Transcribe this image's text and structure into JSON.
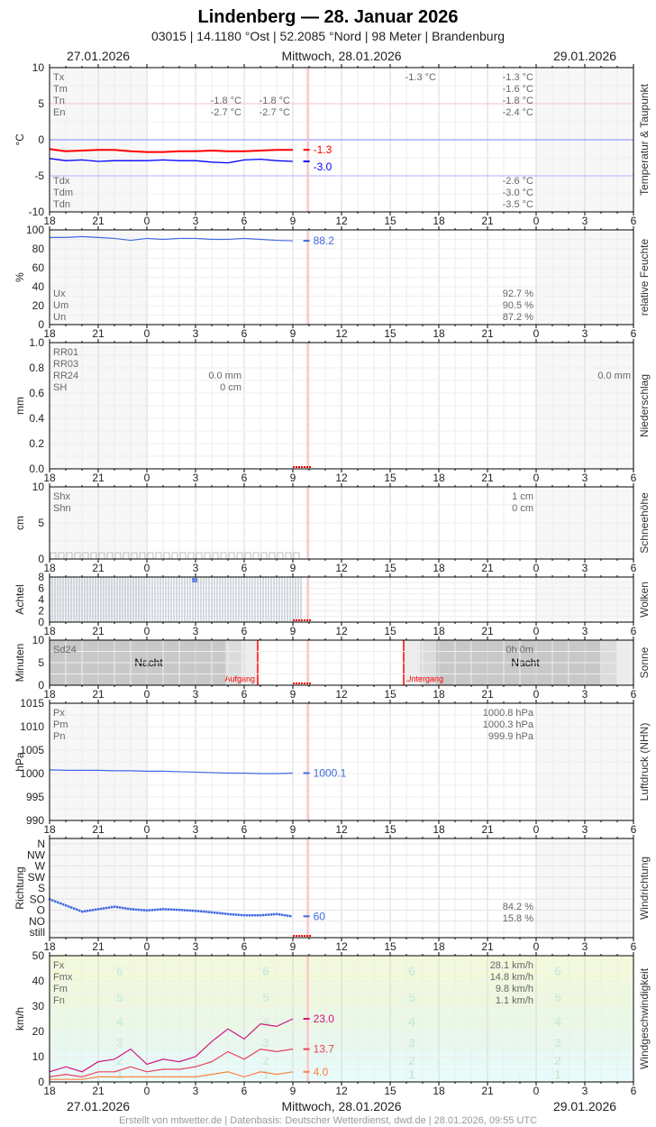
{
  "header": {
    "title": "Lindenberg  —  28. Januar 2026",
    "subtitle": "03015  |  14.1180 °Ost  |  52.2085 °Nord  |  98 Meter  |  Brandenburg",
    "date_left": "27.01.2026",
    "date_center": "Mittwoch, 28.01.2026",
    "date_right": "29.01.2026"
  },
  "footer": "Erstellt von mtwetter.de | Datenbasis: Deutscher Wetterdienst, dwd.de | 28.01.2026, 09:55 UTC",
  "chart_data": {
    "type": "line",
    "x_range": [
      "27.01. 18:00",
      "29.01. 06:00"
    ],
    "x_tick_labels": [
      "18",
      "21",
      "0",
      "3",
      "6",
      "9",
      "12",
      "15",
      "18",
      "21",
      "0",
      "3",
      "6"
    ],
    "now": "28.01. 09:55",
    "times": [
      "27.01. 18:00",
      "27.01. 19:00",
      "27.01. 20:00",
      "27.01. 21:00",
      "27.01. 22:00",
      "27.01. 23:00",
      "28.01. 00:00",
      "28.01. 01:00",
      "28.01. 02:00",
      "28.01. 03:00",
      "28.01. 04:00",
      "28.01. 05:00",
      "28.01. 06:00",
      "28.01. 07:00",
      "28.01. 08:00",
      "28.01. 09:00"
    ],
    "colors": {
      "temp": "#ff0000",
      "dew": "#0000ff",
      "hum": "#4169e1",
      "press": "#4169e1",
      "dir": "#4169e1",
      "fx": "#d0157a",
      "fm": "#e8405a",
      "fn": "#ff8040",
      "now": "#ffc0c0",
      "sun": "#ff0000"
    },
    "panels": [
      {
        "id": "temp",
        "title": "Temperatur & Taupunkt",
        "ylabel": "°C",
        "ylim": [
          -10,
          10
        ],
        "yticks": [
          10,
          5,
          0,
          -5,
          -10
        ],
        "series": [
          {
            "name": "Tx",
            "color": "#ff0000",
            "values": [
              -1.3,
              -1.6,
              -1.5,
              -1.4,
              -1.4,
              -1.6,
              -1.7,
              -1.7,
              -1.6,
              -1.6,
              -1.5,
              -1.6,
              -1.6,
              -1.5,
              -1.4,
              -1.4
            ],
            "last": "-1.3"
          },
          {
            "name": "Td",
            "color": "#0000ff",
            "values": [
              -2.6,
              -2.9,
              -2.8,
              -3.0,
              -2.9,
              -2.9,
              -2.9,
              -2.8,
              -2.9,
              -2.9,
              -3.1,
              -3.2,
              -2.8,
              -2.7,
              -2.9,
              -3.0
            ],
            "last": "-3.0"
          }
        ],
        "legend_top": [
          "Tx",
          "Tm",
          "Tn",
          "En"
        ],
        "legend_bottom": [
          "Tdx",
          "Tdm",
          "Tdn"
        ],
        "col_27_top": [
          null,
          null,
          "-1.8 °C",
          "-2.7 °C"
        ],
        "col_28a_top": [
          null,
          null,
          "-1.8 °C",
          "-2.7 °C"
        ],
        "col_28b_top": [
          "-1.3 °C",
          null,
          null,
          null
        ],
        "col_28_top": [
          "-1.3 °C",
          "-1.6 °C",
          "-1.8 °C",
          "-2.4 °C"
        ],
        "col_28_bottom": [
          "-2.6 °C",
          "-3.0 °C",
          "-3.5 °C"
        ]
      },
      {
        "id": "hum",
        "title": "relative Feuchte",
        "ylabel": "%",
        "ylim": [
          0,
          100
        ],
        "yticks": [
          100,
          80,
          60,
          40,
          20,
          0
        ],
        "series": [
          {
            "name": "U",
            "color": "#4169e1",
            "values": [
              92,
              92,
              93,
              92,
              91,
              89,
              91,
              90,
              91,
              91,
              90,
              90,
              91,
              90,
              89,
              88.5
            ],
            "last": "88.2"
          }
        ],
        "legend_bottom": [
          "Ux",
          "Um",
          "Un"
        ],
        "col_28_bottom": [
          "92.7 %",
          "90.5 %",
          "87.2 %"
        ]
      },
      {
        "id": "precip",
        "title": "Niederschlag",
        "ylabel": "mm",
        "ylim": [
          0,
          1
        ],
        "yticks": [
          "1.0",
          "0.8",
          "0.6",
          "0.4",
          "0.2",
          "0.0"
        ],
        "legend_top": [
          "RR01",
          "RR03",
          "RR24",
          "SH"
        ],
        "col_27_top": [
          null,
          null,
          "0.0 mm",
          "0 cm"
        ],
        "col_29_top": [
          null,
          null,
          "0.0 mm",
          null
        ]
      },
      {
        "id": "snow",
        "title": "Schneehöhe",
        "ylabel": "cm",
        "ylim": [
          0,
          10
        ],
        "yticks": [
          10,
          5,
          0
        ],
        "legend_top": [
          "Shx",
          "Shn"
        ],
        "col_28_top": [
          "1 cm",
          "0 cm"
        ]
      },
      {
        "id": "cloud",
        "title": "Wolken",
        "ylabel": "Achtel",
        "ylim": [
          0,
          8
        ],
        "yticks": [
          8,
          6,
          4,
          2,
          0
        ],
        "cover_octas": 8,
        "cover_until": "28.01. 09:30"
      },
      {
        "id": "sun",
        "title": "Sonne",
        "ylabel": "Minuten",
        "ylim": [
          0,
          10
        ],
        "yticks": [
          10,
          5,
          0
        ],
        "legend_top": [
          "Sd24"
        ],
        "col_28_top": [
          "0h 0m"
        ],
        "night_label": "Nacht",
        "sunrise_label": "Aufgang",
        "sunset_label": "Untergang",
        "sunrise": "28.01. 06:50",
        "sunset": "28.01. 15:50"
      },
      {
        "id": "press",
        "title": "Luftdruck (NHN)",
        "ylabel": "hPa",
        "ylim": [
          990,
          1015
        ],
        "yticks": [
          1015,
          1010,
          1005,
          1000,
          995,
          990
        ],
        "series": [
          {
            "name": "P",
            "color": "#4169e1",
            "values": [
              1000.8,
              1000.7,
              1000.7,
              1000.7,
              1000.6,
              1000.6,
              1000.5,
              1000.5,
              1000.4,
              1000.3,
              1000.2,
              1000.1,
              1000.1,
              1000.0,
              1000.0,
              1000.1
            ],
            "last": "1000.1"
          }
        ],
        "legend_top": [
          "Px",
          "Pm",
          "Pn"
        ],
        "col_28_top": [
          "1000.8 hPa",
          "1000.3 hPa",
          "999.9 hPa"
        ]
      },
      {
        "id": "dir",
        "title": "Windrichtung",
        "ylabel": "Richtung",
        "yticks": [
          "N",
          "NW",
          "W",
          "SW",
          "S",
          "SO",
          "O",
          "NO",
          "still"
        ],
        "series": [
          {
            "name": "dd",
            "color": "#4169e1",
            "values": [
              135,
              110,
              85,
              95,
              105,
              95,
              90,
              95,
              92,
              88,
              82,
              75,
              70,
              70,
              75,
              65
            ],
            "last": "60"
          }
        ],
        "col_28_bottom": [
          "84.2 %",
          "15.8 %"
        ]
      },
      {
        "id": "wind",
        "title": "Windgeschwindigkeit",
        "ylabel": "km/h",
        "ylim": [
          0,
          50
        ],
        "yticks": [
          50,
          40,
          30,
          20,
          10,
          0
        ],
        "beaufort": [
          "1",
          "2",
          "3",
          "4",
          "5",
          "6"
        ],
        "series": [
          {
            "name": "Fx",
            "color": "#d0157a",
            "values": [
              4,
              6,
              4,
              8,
              9,
              13,
              7,
              9,
              8,
              10,
              16,
              21,
              17,
              23,
              22,
              25
            ],
            "last": "23.0"
          },
          {
            "name": "Fm",
            "color": "#e8405a",
            "values": [
              2,
              3,
              2,
              4,
              4,
              6,
              4,
              5,
              5,
              6,
              8,
              12,
              9,
              13,
              12,
              13
            ],
            "last": "13.7"
          },
          {
            "name": "Fn",
            "color": "#ff8040",
            "values": [
              1,
              1,
              1,
              2,
              2,
              2,
              2,
              2,
              2,
              2,
              3,
              4,
              2,
              4,
              3,
              4
            ],
            "last": "4.0"
          }
        ],
        "legend_top": [
          "Fx",
          "Fmx",
          "Fm",
          "Fn"
        ],
        "legend_colors": [
          "#d0157a",
          "#666666",
          "#e8405a",
          "#ff8040"
        ],
        "col_28_top": [
          "28.1 km/h",
          "14.8 km/h",
          "9.8 km/h",
          "1.1 km/h"
        ]
      }
    ]
  }
}
